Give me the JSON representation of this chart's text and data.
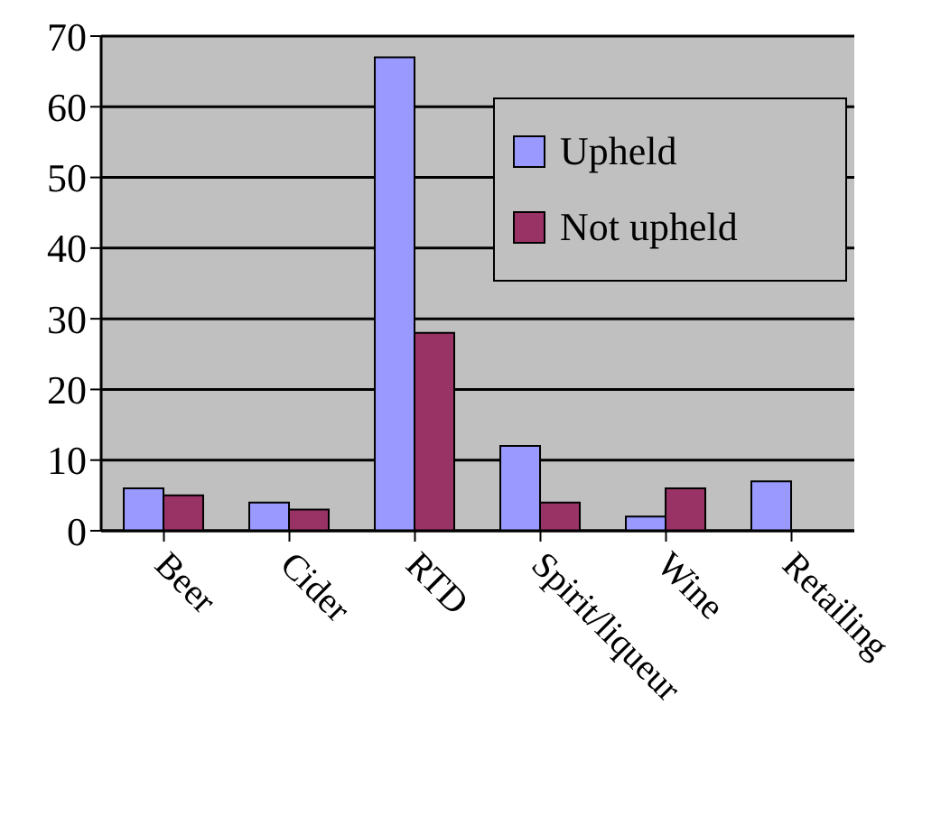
{
  "chart_data": {
    "type": "bar",
    "categories": [
      "Beer",
      "Cider",
      "RTD",
      "Spirit/liqueur",
      "Wine",
      "Retailing"
    ],
    "series": [
      {
        "name": "Upheld",
        "color": "#9999ff",
        "values": [
          6,
          4,
          67,
          12,
          2,
          7
        ]
      },
      {
        "name": "Not upheld",
        "color": "#993366",
        "values": [
          5,
          3,
          28,
          4,
          6,
          0
        ]
      }
    ],
    "ylim": [
      0,
      70
    ],
    "yticks": [
      0,
      10,
      20,
      30,
      40,
      50,
      60,
      70
    ],
    "grid": "y",
    "legend": "top right"
  }
}
